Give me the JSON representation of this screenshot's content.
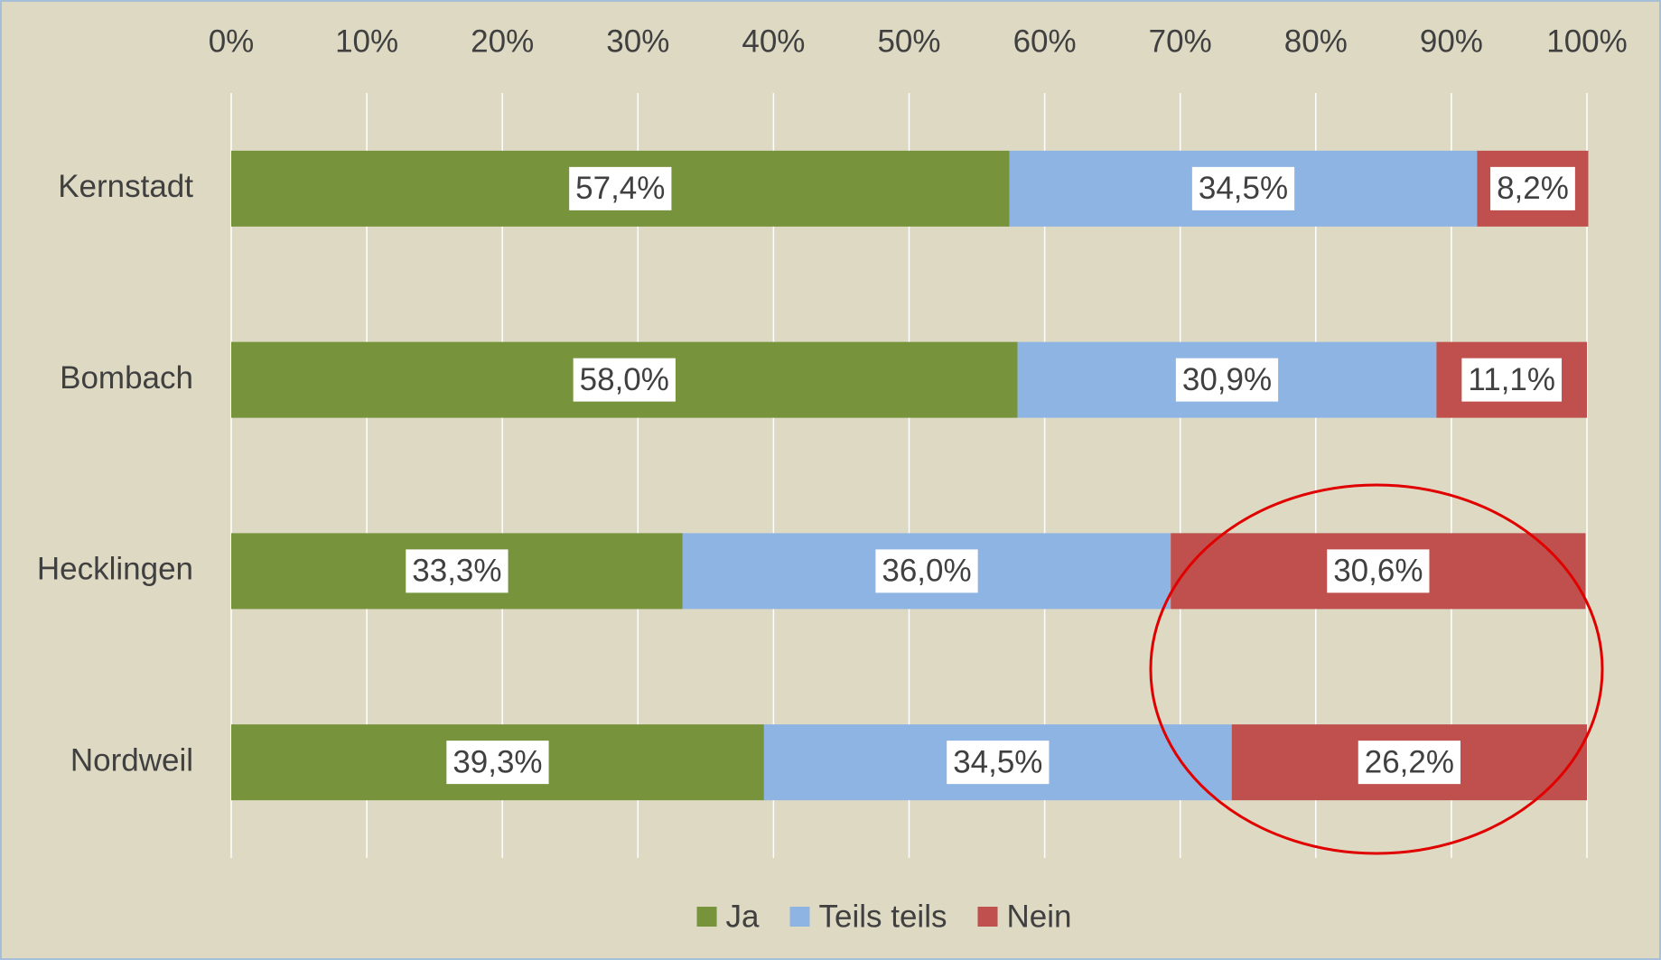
{
  "chart_data": {
    "type": "stacked-barh",
    "categories": [
      "Kernstadt",
      "Bombach",
      "Hecklingen",
      "Nordweil"
    ],
    "series": [
      {
        "name": "Ja",
        "color": "#77933c",
        "values": [
          57.4,
          58.0,
          33.3,
          39.3
        ],
        "value_labels": [
          "57,4%",
          "58,0%",
          "33,3%",
          "39,3%"
        ]
      },
      {
        "name": "Teils teils",
        "color": "#8eb4e3",
        "values": [
          34.5,
          30.9,
          36.0,
          34.5
        ],
        "value_labels": [
          "34,5%",
          "30,9%",
          "36,0%",
          "34,5%"
        ]
      },
      {
        "name": "Nein",
        "color": "#c0504d",
        "values": [
          8.2,
          11.1,
          30.6,
          26.2
        ],
        "value_labels": [
          "8,2%",
          "11,1%",
          "30,6%",
          "26,2%"
        ]
      }
    ],
    "xlim": [
      0,
      100
    ],
    "xticks": [
      {
        "value": 0,
        "label": "0%"
      },
      {
        "value": 10,
        "label": "10%"
      },
      {
        "value": 20,
        "label": "20%"
      },
      {
        "value": 30,
        "label": "30%"
      },
      {
        "value": 40,
        "label": "40%"
      },
      {
        "value": 50,
        "label": "50%"
      },
      {
        "value": 60,
        "label": "60%"
      },
      {
        "value": 70,
        "label": "70%"
      },
      {
        "value": 80,
        "label": "80%"
      },
      {
        "value": 90,
        "label": "90%"
      },
      {
        "value": 100,
        "label": "100%"
      }
    ],
    "grid": true,
    "legend": "bottom"
  }
}
